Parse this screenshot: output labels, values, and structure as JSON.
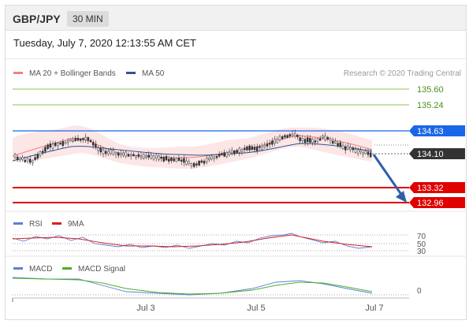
{
  "header": {
    "pair": "GBP/JPY",
    "timeframe": "30 MIN"
  },
  "datetime": "Tuesday, July 7, 2020 12:13:55 AM CET",
  "legend": {
    "ma20": "MA 20 + Bollinger Bands",
    "ma50": "MA 50",
    "source": "Research © 2020 Trading Central"
  },
  "price_levels": [
    {
      "label": "135.60",
      "kind": "resistance-line"
    },
    {
      "label": "135.24",
      "kind": "resistance-line"
    },
    {
      "label": "134.63",
      "kind": "pivot"
    },
    {
      "label": "134.10",
      "kind": "last-price"
    },
    {
      "label": "133.32",
      "kind": "support"
    },
    {
      "label": "132.96",
      "kind": "support"
    }
  ],
  "rsi_panel": {
    "rsi_label": "RSI",
    "ma_label": "9MA",
    "levels": [
      "70",
      "50",
      "30"
    ]
  },
  "macd_panel": {
    "macd_label": "MACD",
    "signal_label": "MACD Signal",
    "zero_label": "0"
  },
  "x_axis": [
    "Jul 3",
    "Jul 5",
    "Jul 7"
  ],
  "colors": {
    "ma20": "#f08080",
    "ma50": "#2f5597",
    "pivot": "#1a66e8",
    "support": "#e00000",
    "resistance": "#8cc152",
    "last": "#333333",
    "rsi": "#5b7fd6",
    "rsi_ma": "#d62020",
    "macd": "#5b7fd6",
    "signal": "#4caf26",
    "candle_up": "#ffffff",
    "candle_down": "#333333"
  }
}
